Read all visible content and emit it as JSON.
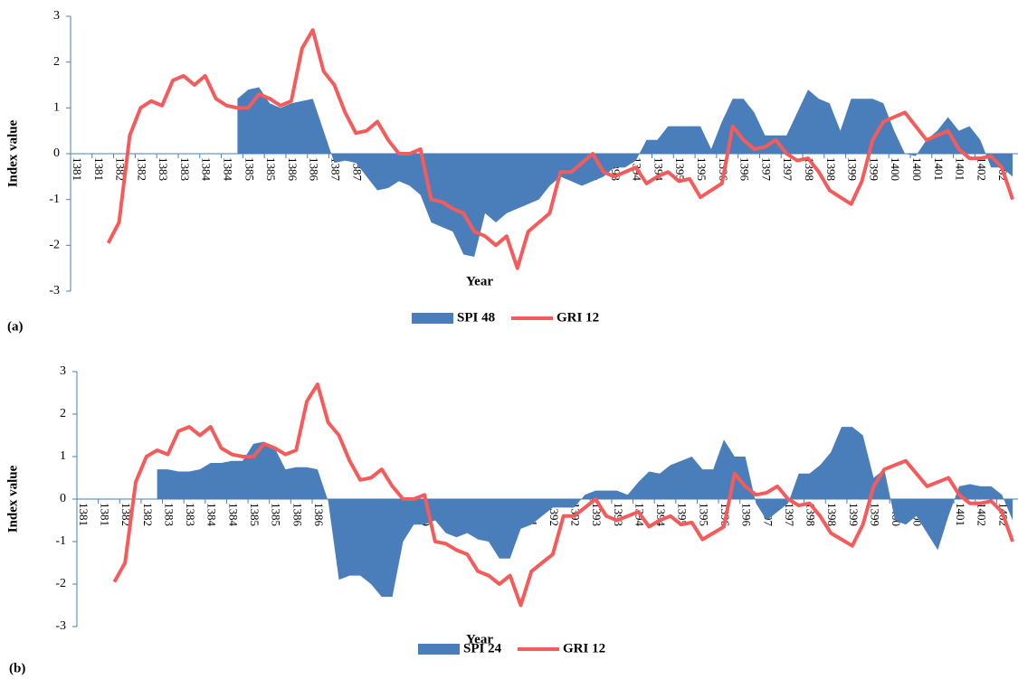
{
  "chart_data": [
    {
      "type": "line",
      "panel_label": "(a)",
      "x_label": "Year",
      "y_label": "Index value",
      "categories": [
        "1381",
        null,
        "1381",
        null,
        "1382",
        null,
        "1382",
        null,
        "1383",
        null,
        "1383",
        null,
        "1384",
        null,
        "1384",
        null,
        "1385",
        null,
        "1385",
        null,
        "1386",
        null,
        "1386",
        null,
        "1387",
        null,
        "1387",
        null,
        "1388",
        null,
        "1388",
        null,
        "1389",
        null,
        "1389",
        null,
        "1390",
        null,
        "1390",
        null,
        "1391",
        null,
        "1391",
        null,
        "1392",
        null,
        "1392",
        null,
        "1393",
        null,
        "1393",
        null,
        "1394",
        null,
        "1394",
        null,
        "1395",
        null,
        "1395",
        null,
        "1396",
        null,
        "1396",
        null,
        "1397",
        null,
        "1397",
        null,
        "1398",
        null,
        "1398",
        null,
        "1399",
        null,
        "1399",
        null,
        "1400",
        null,
        "1400",
        null,
        "1401",
        null,
        "1401",
        null,
        "1402",
        null,
        "1402",
        null
      ],
      "series": [
        {
          "name": "SPI 48",
          "type": "area",
          "color": "#4a7ebb",
          "values": [
            null,
            null,
            null,
            null,
            null,
            null,
            null,
            null,
            null,
            null,
            null,
            null,
            null,
            null,
            null,
            1.2,
            1.4,
            1.45,
            1.1,
            1.0,
            1.1,
            1.15,
            1.2,
            0.5,
            -0.2,
            -0.15,
            -0.2,
            -0.5,
            -0.8,
            -0.75,
            -0.6,
            -0.7,
            -0.9,
            -1.5,
            -1.6,
            -1.7,
            -2.2,
            -2.25,
            -1.3,
            -1.5,
            -1.3,
            -1.2,
            -1.1,
            -1.0,
            -0.7,
            -0.5,
            -0.6,
            -0.7,
            -0.6,
            -0.5,
            -0.3,
            -0.3,
            -0.15,
            0.3,
            0.3,
            0.6,
            0.6,
            0.6,
            0.6,
            0.1,
            0.7,
            1.2,
            1.2,
            0.9,
            0.4,
            0.4,
            0.4,
            0.9,
            1.4,
            1.2,
            1.1,
            0.5,
            1.2,
            1.2,
            1.2,
            1.1,
            0.5,
            0,
            -0.05,
            0.3,
            0.5,
            0.8,
            0.5,
            0.6,
            0.3,
            -0.3,
            -0.3,
            -0.5
          ]
        },
        {
          "name": "GRI 12",
          "type": "line",
          "color": "#f65b5b",
          "values": [
            null,
            null,
            null,
            -1.95,
            -1.5,
            0.4,
            1.0,
            1.15,
            1.05,
            1.6,
            1.7,
            1.5,
            1.7,
            1.2,
            1.05,
            1.0,
            1.0,
            1.3,
            1.2,
            1.05,
            1.15,
            2.3,
            2.7,
            1.8,
            1.5,
            0.9,
            0.45,
            0.5,
            0.7,
            0.3,
            0,
            0,
            0.1,
            -1.0,
            -1.05,
            -1.2,
            -1.3,
            -1.7,
            -1.8,
            -2.0,
            -1.8,
            -2.5,
            -1.7,
            -1.5,
            -1.3,
            -0.4,
            -0.4,
            -0.2,
            0,
            -0.4,
            -0.5,
            -0.4,
            -0.3,
            -0.65,
            -0.5,
            -0.4,
            -0.6,
            -0.55,
            -0.95,
            -0.8,
            -0.65,
            0.6,
            0.3,
            0.1,
            0.15,
            0.3,
            0,
            -0.15,
            -0.1,
            -0.4,
            -0.8,
            -0.95,
            -1.1,
            -0.6,
            0.3,
            0.7,
            0.8,
            0.9,
            0.6,
            0.3,
            0.4,
            0.5,
            0.1,
            -0.1,
            -0.1,
            -0.05,
            -0.3,
            -1.0
          ]
        }
      ],
      "ylim": [
        -3,
        3
      ],
      "yticks": [
        -3,
        -2,
        -1,
        0,
        1,
        2,
        3
      ],
      "legend": "bottom"
    },
    {
      "type": "line",
      "panel_label": "(b)",
      "x_label": "Year",
      "y_label": "Index value",
      "categories": [
        "1381",
        null,
        "1381",
        null,
        "1382",
        null,
        "1382",
        null,
        "1383",
        null,
        "1383",
        null,
        "1384",
        null,
        "1384",
        null,
        "1385",
        null,
        "1385",
        null,
        "1386",
        null,
        "1386",
        null,
        "1387",
        null,
        "1387",
        null,
        "1388",
        null,
        "1388",
        null,
        "1389",
        null,
        "1389",
        null,
        "1390",
        null,
        "1390",
        null,
        "1391",
        null,
        "1391",
        null,
        "1392",
        null,
        "1392",
        null,
        "1393",
        null,
        "1393",
        null,
        "1394",
        null,
        "1394",
        null,
        "1395",
        null,
        "1395",
        null,
        "1396",
        null,
        "1396",
        null,
        "1397",
        null,
        "1397",
        null,
        "1398",
        null,
        "1398",
        null,
        "1399",
        null,
        "1399",
        null,
        "1400",
        null,
        "1400",
        null,
        "1401",
        null,
        "1401",
        null,
        "1402",
        null,
        "1402",
        null
      ],
      "series": [
        {
          "name": "SPI 24",
          "type": "area",
          "color": "#4a7ebb",
          "values": [
            null,
            null,
            null,
            null,
            null,
            null,
            null,
            0.7,
            0.7,
            0.65,
            0.65,
            0.7,
            0.85,
            0.85,
            0.9,
            0.9,
            1.3,
            1.35,
            1.2,
            0.7,
            0.75,
            0.75,
            0.7,
            -0.05,
            -1.9,
            -1.8,
            -1.8,
            -2.0,
            -2.3,
            -2.3,
            -1.0,
            -0.6,
            -0.6,
            -0.5,
            -0.8,
            -0.9,
            -0.8,
            -0.95,
            -1.0,
            -1.4,
            -1.4,
            -0.7,
            -0.6,
            -0.4,
            -0.2,
            -0.2,
            -0.2,
            0.1,
            0.2,
            0.2,
            0.2,
            0.1,
            0.4,
            0.65,
            0.6,
            0.8,
            0.9,
            1.0,
            0.7,
            0.7,
            1.4,
            1.0,
            1.0,
            -0.1,
            -0.5,
            -0.3,
            -0.1,
            0.6,
            0.6,
            0.8,
            1.1,
            1.7,
            1.7,
            1.5,
            0.5,
            0.7,
            -0.5,
            -0.6,
            -0.4,
            -0.8,
            -1.2,
            -0.4,
            0.3,
            0.35,
            0.3,
            0.3,
            0.1,
            -0.5
          ]
        },
        {
          "name": "GRI 12",
          "type": "line",
          "color": "#f65b5b",
          "values": [
            null,
            null,
            null,
            -1.95,
            -1.5,
            0.4,
            1.0,
            1.15,
            1.05,
            1.6,
            1.7,
            1.5,
            1.7,
            1.2,
            1.05,
            1.0,
            1.0,
            1.3,
            1.2,
            1.05,
            1.15,
            2.3,
            2.7,
            1.8,
            1.5,
            0.9,
            0.45,
            0.5,
            0.7,
            0.3,
            0,
            0,
            0.1,
            -1.0,
            -1.05,
            -1.2,
            -1.3,
            -1.7,
            -1.8,
            -2.0,
            -1.8,
            -2.5,
            -1.7,
            -1.5,
            -1.3,
            -0.4,
            -0.4,
            -0.2,
            0,
            -0.4,
            -0.5,
            -0.4,
            -0.3,
            -0.65,
            -0.5,
            -0.4,
            -0.6,
            -0.55,
            -0.95,
            -0.8,
            -0.65,
            0.6,
            0.3,
            0.1,
            0.15,
            0.3,
            0,
            -0.15,
            -0.1,
            -0.4,
            -0.8,
            -0.95,
            -1.1,
            -0.6,
            0.3,
            0.7,
            0.8,
            0.9,
            0.6,
            0.3,
            0.4,
            0.5,
            0.1,
            -0.1,
            -0.1,
            -0.05,
            -0.3,
            -1.0
          ]
        }
      ],
      "ylim": [
        -3,
        3
      ],
      "yticks": [
        -3,
        -2,
        -1,
        0,
        1,
        2,
        3
      ],
      "legend": "bottom"
    }
  ]
}
